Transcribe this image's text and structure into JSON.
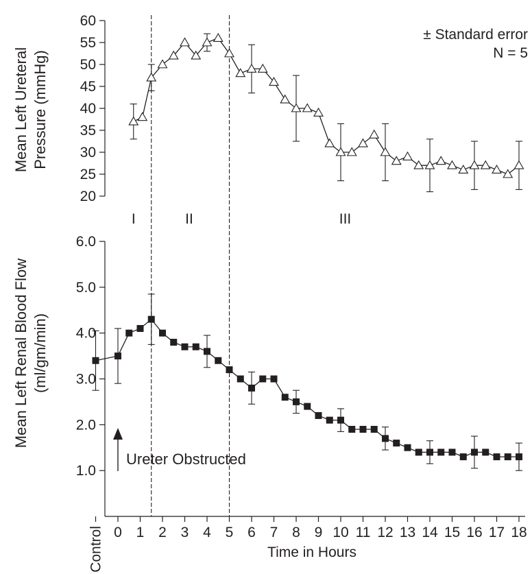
{
  "chart_data": [
    {
      "type": "line",
      "ylabel_line1": "Mean Left Ureteral",
      "ylabel_line2": "Pressure (mmHg)",
      "ylim": [
        20,
        60
      ],
      "yticks": [
        20,
        25,
        30,
        35,
        40,
        45,
        50,
        55,
        60
      ],
      "legend_line1": "± Standard error",
      "legend_line2": "N = 5",
      "legend_position": "top-right",
      "marker": "open-triangle",
      "x": [
        0.7,
        1.1,
        1.5,
        2,
        2.5,
        3,
        3.5,
        4,
        4.5,
        5,
        5.5,
        6,
        6.5,
        7,
        7.5,
        8,
        8.5,
        9,
        9.5,
        10,
        10.5,
        11,
        11.5,
        12,
        12.5,
        13,
        13.5,
        14,
        14.5,
        15,
        15.5,
        16,
        16.5,
        17,
        17.5,
        18
      ],
      "values": [
        37,
        38,
        47,
        50,
        52,
        55,
        52,
        55,
        56,
        52.5,
        48,
        49,
        49,
        46,
        42,
        40,
        40,
        39,
        32,
        30,
        30,
        32,
        34,
        30,
        28,
        29,
        27,
        27,
        28,
        27,
        26,
        27,
        27,
        26,
        25,
        27
      ],
      "error": [
        4,
        0,
        3,
        0,
        0,
        0,
        0,
        2,
        0,
        0,
        0,
        5.5,
        0,
        0,
        0,
        7.5,
        0,
        0,
        0,
        6.5,
        0,
        0,
        0,
        6.5,
        0,
        0,
        0,
        6,
        0,
        0,
        0,
        5.5,
        0,
        0,
        0,
        5.5
      ],
      "phase_labels": [
        "I",
        "II",
        "III"
      ],
      "phase_label_x": [
        0.7,
        3.2,
        10.2
      ],
      "vertical_dashed_lines_x": [
        1.5,
        5
      ]
    },
    {
      "type": "line",
      "ylabel_line1": "Mean Left Renal Blood Flow",
      "ylabel_line2": "(ml/gm/min)",
      "ylim": [
        0,
        6
      ],
      "yticks": [
        1.0,
        2.0,
        3.0,
        4.0,
        5.0,
        6.0
      ],
      "xlabel": "Time in Hours",
      "xticks": [
        "Control",
        "0",
        "1",
        "2",
        "3",
        "4",
        "5",
        "6",
        "7",
        "8",
        "9",
        "10",
        "11",
        "12",
        "13",
        "14",
        "15",
        "16",
        "17",
        "18"
      ],
      "marker": "filled-square",
      "x": [
        -1,
        0,
        0.5,
        1,
        1.5,
        2,
        2.5,
        3,
        3.5,
        4,
        4.5,
        5,
        5.5,
        6,
        6.5,
        7,
        7.5,
        8,
        8.5,
        9,
        9.5,
        10,
        10.5,
        11,
        11.5,
        12,
        12.5,
        13,
        13.5,
        14,
        14.5,
        15,
        15.5,
        16,
        16.5,
        17,
        17.5,
        18
      ],
      "values": [
        3.4,
        3.5,
        4.0,
        4.1,
        4.3,
        4.0,
        3.8,
        3.7,
        3.7,
        3.6,
        3.4,
        3.2,
        3.0,
        2.8,
        3.0,
        3.0,
        2.6,
        2.5,
        2.4,
        2.2,
        2.1,
        2.1,
        1.9,
        1.9,
        1.9,
        1.7,
        1.6,
        1.5,
        1.4,
        1.4,
        1.4,
        1.4,
        1.3,
        1.4,
        1.4,
        1.3,
        1.3,
        1.3
      ],
      "error": [
        0.65,
        0.6,
        0,
        0,
        0.55,
        0,
        0,
        0,
        0,
        0.35,
        0,
        0,
        0,
        0.35,
        0,
        0,
        0,
        0.25,
        0,
        0,
        0,
        0.25,
        0,
        0,
        0,
        0.25,
        0,
        0,
        0,
        0.25,
        0,
        0,
        0,
        0.35,
        0,
        0,
        0,
        0.3
      ],
      "annotation": "Ureter Obstructed",
      "annotation_arrow_x": 0,
      "vertical_dashed_lines_x": [
        1.5,
        5
      ]
    }
  ]
}
